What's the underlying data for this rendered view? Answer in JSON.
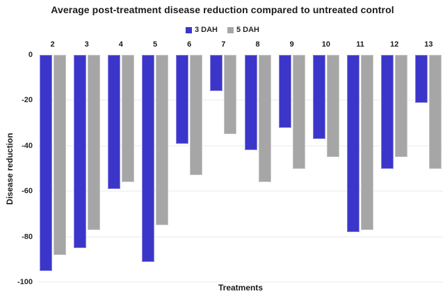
{
  "title": "Average post-treatment disease reduction compared to untreated control",
  "legend": [
    {
      "label": "3 DAH",
      "color": "#3b36c9"
    },
    {
      "label": "5 DAH",
      "color": "#a6a6a6"
    }
  ],
  "x_axis": {
    "title": "Treatments"
  },
  "y_axis": {
    "title": "Disease reduction",
    "ticks": [
      0,
      -20,
      -40,
      -60,
      -80,
      -100
    ]
  },
  "chart_data": {
    "type": "bar",
    "title": "Average post-treatment disease reduction compared to untreated control",
    "xlabel": "Treatments",
    "ylabel": "Disease reduction",
    "ylim": [
      -100,
      0
    ],
    "grid": true,
    "legend_position": "top-center",
    "categories": [
      "2",
      "3",
      "4",
      "5",
      "6",
      "7",
      "8",
      "9",
      "10",
      "11",
      "12",
      "13"
    ],
    "series": [
      {
        "name": "3 DAH",
        "color": "#3b36c9",
        "values": [
          -95,
          -85,
          -59,
          -91,
          -39,
          -16,
          -42,
          -32,
          -37,
          -78,
          -50,
          -21
        ]
      },
      {
        "name": "5 DAH",
        "color": "#a6a6a6",
        "values": [
          -88,
          -77,
          -56,
          -75,
          -53,
          -35,
          -56,
          -50,
          -45,
          -77,
          -45,
          -50
        ]
      }
    ]
  }
}
